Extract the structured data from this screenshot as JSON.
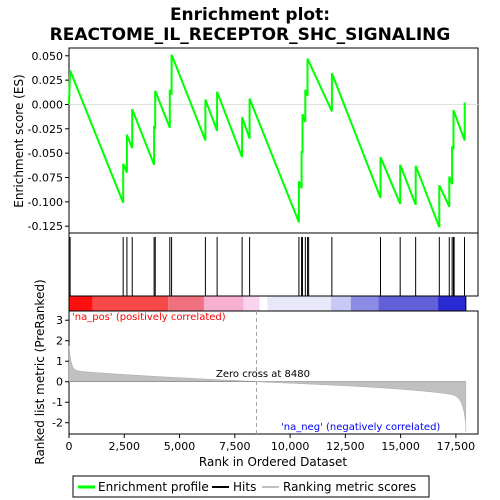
{
  "chart_data": {
    "type": "line",
    "title": "Enrichment plot:",
    "subtitle": "REACTOME_IL_RECEPTOR_SHC_SIGNALING",
    "es_panel": {
      "ylabel": "Enrichment score (ES)",
      "yticks": [
        "0.050",
        "0.025",
        "0.000",
        "-0.025",
        "-0.050",
        "-0.075",
        "-0.100",
        "-0.125"
      ],
      "ylim": [
        -0.132,
        0.058
      ]
    },
    "metric_panel": {
      "ylabel": "Ranked list metric (PreRanked)",
      "yticks": [
        "3",
        "2",
        "1",
        "0",
        "-1",
        "-2"
      ],
      "ylim": [
        -2.55,
        3.45
      ],
      "pos_label": "'na_pos' (positively correlated)",
      "neg_label": "'na_neg' (negatively correlated)",
      "zero_cross_label": "Zero cross at 8480",
      "zero_cross": 8480
    },
    "x": {
      "xlabel": "Rank in Ordered Dataset",
      "xticks": [
        "0",
        "2,500",
        "5,000",
        "7,500",
        "10,000",
        "12,500",
        "15,000",
        "17,500"
      ],
      "xlim": [
        0,
        18500
      ],
      "n_genes": 17950
    },
    "hits": [
      50,
      2450,
      2620,
      2860,
      3850,
      3900,
      4560,
      4640,
      6170,
      6700,
      7830,
      8170,
      10400,
      10520,
      10560,
      10690,
      10790,
      10840,
      11890,
      14090,
      14980,
      15680,
      16750,
      17200,
      17330,
      17390,
      17420,
      17890
    ],
    "es_profile": [
      [
        0,
        0.0
      ],
      [
        50,
        0.035
      ],
      [
        2450,
        -0.101
      ],
      [
        2450,
        -0.061
      ],
      [
        2620,
        -0.07
      ],
      [
        2620,
        -0.031
      ],
      [
        2860,
        -0.045
      ],
      [
        2860,
        -0.005
      ],
      [
        3850,
        -0.062
      ],
      [
        3850,
        -0.022
      ],
      [
        3900,
        -0.025
      ],
      [
        3900,
        0.014
      ],
      [
        4560,
        -0.024
      ],
      [
        4560,
        0.015
      ],
      [
        4640,
        0.01
      ],
      [
        4640,
        0.051
      ],
      [
        6170,
        -0.037
      ],
      [
        6170,
        0.005
      ],
      [
        6700,
        -0.027
      ],
      [
        6700,
        0.013
      ],
      [
        7830,
        -0.054
      ],
      [
        7830,
        -0.013
      ],
      [
        8170,
        -0.035
      ],
      [
        8170,
        0.006
      ],
      [
        10400,
        -0.121
      ],
      [
        10400,
        -0.079
      ],
      [
        10520,
        -0.086
      ],
      [
        10520,
        -0.048
      ],
      [
        10560,
        -0.05
      ],
      [
        10560,
        -0.01
      ],
      [
        10690,
        -0.018
      ],
      [
        10690,
        0.015
      ],
      [
        10790,
        0.009
      ],
      [
        10790,
        0.047
      ],
      [
        11890,
        -0.007
      ],
      [
        11890,
        0.032
      ],
      [
        14090,
        -0.096
      ],
      [
        14090,
        -0.054
      ],
      [
        14980,
        -0.102
      ],
      [
        14980,
        -0.062
      ],
      [
        15680,
        -0.103
      ],
      [
        15680,
        -0.063
      ],
      [
        16750,
        -0.126
      ],
      [
        16750,
        -0.083
      ],
      [
        17200,
        -0.105
      ],
      [
        17200,
        -0.074
      ],
      [
        17330,
        -0.082
      ],
      [
        17330,
        -0.043
      ],
      [
        17390,
        -0.046
      ],
      [
        17390,
        -0.006
      ],
      [
        17900,
        -0.037
      ],
      [
        17900,
        0.002
      ]
    ],
    "legend": {
      "entries": [
        "Enrichment profile",
        "Hits",
        "Ranking metric scores"
      ],
      "placement": "bottom"
    },
    "colors": {
      "es_line": "#00ff00",
      "hit_line": "#000000",
      "metric_fill": "#c0c0c0",
      "pos_text": "#ff0000",
      "neg_text": "#0000ff",
      "zero_line": "#a0a0a0"
    }
  }
}
